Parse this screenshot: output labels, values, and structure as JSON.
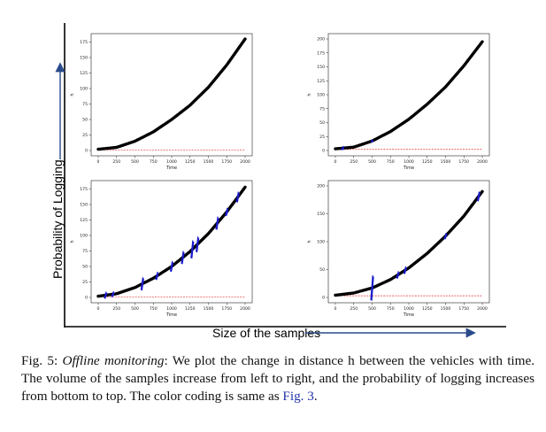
{
  "figure": {
    "ylabel": "Probability of Logging",
    "xlabel": "Size of the samples"
  },
  "caption": {
    "prefix": "Fig. 5: ",
    "italic": "Offline monitoring",
    "body": ": We plot the change in distance h between the vehicles with time. The volume of the samples increase from left to right, and the probability of logging increases from bottom to top. The color coding is same as ",
    "ref": "Fig. 3",
    "end": "."
  },
  "colors": {
    "curve": "#000000",
    "deviation": "#1a1acc",
    "baseline": "#e03030"
  },
  "chart_data": [
    {
      "type": "line",
      "position": "top-left",
      "xlabel": "Time",
      "ylabel": "h",
      "xlim": [
        0,
        2000
      ],
      "ylim": [
        0,
        180
      ],
      "xticks": [
        0,
        250,
        500,
        750,
        1000,
        1250,
        1500,
        1750,
        2000
      ],
      "yticks": [
        0,
        25,
        50,
        75,
        100,
        125,
        150,
        175
      ],
      "series": [
        {
          "x": [
            0,
            250,
            500,
            750,
            1000,
            1250,
            1500,
            1750,
            2000
          ],
          "y": [
            2,
            5,
            15,
            30,
            50,
            73,
            102,
            138,
            180
          ]
        },
        {
          "x": [
            0,
            2000
          ],
          "y": [
            1,
            1
          ]
        }
      ],
      "spikes": []
    },
    {
      "type": "line",
      "position": "top-right",
      "xlabel": "Time",
      "ylabel": "h",
      "xlim": [
        0,
        2000
      ],
      "ylim": [
        0,
        200
      ],
      "xticks": [
        0,
        250,
        500,
        750,
        1000,
        1250,
        1500,
        1750,
        2000
      ],
      "yticks": [
        0,
        25,
        50,
        75,
        100,
        125,
        150,
        175,
        200
      ],
      "series": [
        {
          "x": [
            0,
            250,
            500,
            750,
            1000,
            1250,
            1500,
            1750,
            2000
          ],
          "y": [
            3,
            6,
            17,
            34,
            56,
            83,
            114,
            152,
            195
          ]
        },
        {
          "x": [
            0,
            2000
          ],
          "y": [
            2,
            2
          ]
        }
      ],
      "spikes": [
        {
          "x": 100,
          "amp": 3
        },
        {
          "x": 500,
          "amp": 2
        }
      ]
    },
    {
      "type": "line",
      "position": "bottom-left",
      "xlabel": "Time",
      "ylabel": "h",
      "xlim": [
        0,
        2000
      ],
      "ylim": [
        0,
        180
      ],
      "xticks": [
        0,
        250,
        500,
        750,
        1000,
        1250,
        1500,
        1750,
        2000
      ],
      "yticks": [
        0,
        25,
        50,
        75,
        100,
        125,
        150,
        175
      ],
      "series": [
        {
          "x": [
            0,
            250,
            500,
            750,
            1000,
            1250,
            1500,
            1750,
            2000
          ],
          "y": [
            2,
            6,
            16,
            31,
            50,
            74,
            103,
            138,
            178
          ]
        },
        {
          "x": [
            0,
            2000
          ],
          "y": [
            1,
            1
          ]
        }
      ],
      "spikes": [
        {
          "x": 100,
          "amp": 5
        },
        {
          "x": 200,
          "amp": 4
        },
        {
          "x": 600,
          "amp": 10
        },
        {
          "x": 800,
          "amp": 6
        },
        {
          "x": 1000,
          "amp": 8
        },
        {
          "x": 1150,
          "amp": 10
        },
        {
          "x": 1280,
          "amp": 14
        },
        {
          "x": 1350,
          "amp": 12
        },
        {
          "x": 1620,
          "amp": 10
        },
        {
          "x": 1750,
          "amp": 6
        },
        {
          "x": 1900,
          "amp": 8
        }
      ]
    },
    {
      "type": "line",
      "position": "bottom-right",
      "xlabel": "Time",
      "ylabel": "h",
      "xlim": [
        0,
        2000
      ],
      "ylim": [
        0,
        200
      ],
      "xticks": [
        0,
        250,
        500,
        750,
        1000,
        1250,
        1500,
        1750,
        2000
      ],
      "yticks": [
        0,
        50,
        100,
        150,
        200
      ],
      "series": [
        {
          "x": [
            0,
            250,
            500,
            750,
            1000,
            1250,
            1500,
            1750,
            2000
          ],
          "y": [
            4,
            8,
            17,
            32,
            53,
            79,
            110,
            146,
            190
          ]
        },
        {
          "x": [
            0,
            2000
          ],
          "y": [
            3,
            3
          ]
        }
      ],
      "spikes": [
        {
          "x": 500,
          "amp": 22
        },
        {
          "x": 850,
          "amp": 6
        },
        {
          "x": 950,
          "amp": 6
        },
        {
          "x": 1500,
          "amp": 5
        },
        {
          "x": 1950,
          "amp": 8
        }
      ]
    }
  ]
}
